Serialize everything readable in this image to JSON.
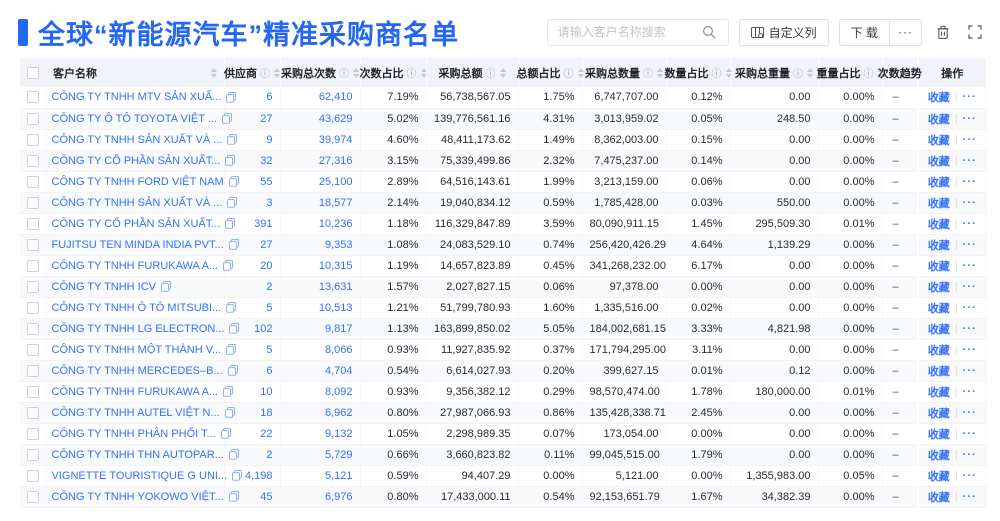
{
  "colors": {
    "accent": "#2468F2",
    "link": "#3370FF",
    "header_bg": "#F1F3F8"
  },
  "header": {
    "title": "全球“新能源汽车”精准采购商名单",
    "search_placeholder": "请输入客户名称搜索",
    "customize_label": "自定义列",
    "download_label": "下 载",
    "more_label": "···"
  },
  "icons": {
    "info": "ⓘ",
    "trash": "trash-icon",
    "fullscreen": "fullscreen-icon",
    "search": "search-icon",
    "copy": "copy-icon"
  },
  "table": {
    "actions": {
      "favorite": "收藏",
      "more": "···"
    },
    "columns": [
      {
        "key": "name",
        "label": "客户名称",
        "info": false,
        "sort": true
      },
      {
        "key": "supplier",
        "label": "供应商",
        "info": true,
        "sort": true
      },
      {
        "key": "total_count",
        "label": "采购总次数",
        "info": true,
        "sort": true
      },
      {
        "key": "count_pct",
        "label": "次数占比",
        "info": true,
        "sort": true
      },
      {
        "key": "total_amount",
        "label": "采购总额",
        "info": true,
        "sort": true
      },
      {
        "key": "amount_pct",
        "label": "总额占比",
        "info": true,
        "sort": true
      },
      {
        "key": "total_qty",
        "label": "采购总数量",
        "info": true,
        "sort": true
      },
      {
        "key": "qty_pct",
        "label": "数量占比",
        "info": true,
        "sort": true
      },
      {
        "key": "total_weight",
        "label": "采购总重量",
        "info": true,
        "sort": true
      },
      {
        "key": "weight_pct",
        "label": "重量占比",
        "info": true,
        "sort": true
      },
      {
        "key": "trend",
        "label": "次数趋势",
        "info": false,
        "sort": false
      },
      {
        "key": "ops",
        "label": "操作",
        "info": false,
        "sort": false
      }
    ],
    "value_keys": [
      "supplier",
      "total_count",
      "count_pct",
      "total_amount",
      "amount_pct",
      "total_qty",
      "qty_pct",
      "total_weight",
      "weight_pct"
    ],
    "blue_keys": [
      "supplier",
      "total_count"
    ],
    "rows": [
      {
        "name": "CÔNG TY TNHH MTV SẢN XUẤ...",
        "supplier": "6",
        "total_count": "62,410",
        "count_pct": "7.19%",
        "total_amount": "56,738,567.05",
        "amount_pct": "1.75%",
        "total_qty": "6,747,707.00",
        "qty_pct": "0.12%",
        "total_weight": "0.00",
        "weight_pct": "0.00%",
        "trend": "–"
      },
      {
        "name": "CÔNG TY Ô TÔ TOYOTA VIỆT ...",
        "supplier": "27",
        "total_count": "43,629",
        "count_pct": "5.02%",
        "total_amount": "139,776,561.16",
        "amount_pct": "4.31%",
        "total_qty": "3,013,959.02",
        "qty_pct": "0.05%",
        "total_weight": "248.50",
        "weight_pct": "0.00%",
        "trend": "–"
      },
      {
        "name": "CÔNG TY TNHH SẢN XUẤT VÀ ...",
        "supplier": "9",
        "total_count": "39,974",
        "count_pct": "4.60%",
        "total_amount": "48,411,173.62",
        "amount_pct": "1.49%",
        "total_qty": "8,362,003.00",
        "qty_pct": "0.15%",
        "total_weight": "0.00",
        "weight_pct": "0.00%",
        "trend": "–"
      },
      {
        "name": "CÔNG TY CỔ PHẦN SẢN XUẤT...",
        "supplier": "32",
        "total_count": "27,316",
        "count_pct": "3.15%",
        "total_amount": "75,339,499.86",
        "amount_pct": "2.32%",
        "total_qty": "7,475,237.00",
        "qty_pct": "0.14%",
        "total_weight": "0.00",
        "weight_pct": "0.00%",
        "trend": "–"
      },
      {
        "name": "CÔNG TY TNHH FORD VIỆT NAM",
        "supplier": "55",
        "total_count": "25,100",
        "count_pct": "2.89%",
        "total_amount": "64,516,143.61",
        "amount_pct": "1.99%",
        "total_qty": "3,213,159.00",
        "qty_pct": "0.06%",
        "total_weight": "0.00",
        "weight_pct": "0.00%",
        "trend": "–"
      },
      {
        "name": "CÔNG TY TNHH SẢN XUẤT VÀ ...",
        "supplier": "3",
        "total_count": "18,577",
        "count_pct": "2.14%",
        "total_amount": "19,040,834.12",
        "amount_pct": "0.59%",
        "total_qty": "1,785,428.00",
        "qty_pct": "0.03%",
        "total_weight": "550.00",
        "weight_pct": "0.00%",
        "trend": "–"
      },
      {
        "name": "CÔNG TY CỔ PHẦN SẢN XUẤT...",
        "supplier": "391",
        "total_count": "10,236",
        "count_pct": "1.18%",
        "total_amount": "116,329,847.89",
        "amount_pct": "3.59%",
        "total_qty": "80,090,911.15",
        "qty_pct": "1.45%",
        "total_weight": "295,509.30",
        "weight_pct": "0.01%",
        "trend": "–"
      },
      {
        "name": "FUJITSU TEN MINDA INDIA PVT...",
        "supplier": "27",
        "total_count": "9,353",
        "count_pct": "1.08%",
        "total_amount": "24,083,529.10",
        "amount_pct": "0.74%",
        "total_qty": "256,420,426.29",
        "qty_pct": "4.64%",
        "total_weight": "1,139.29",
        "weight_pct": "0.00%",
        "trend": "–"
      },
      {
        "name": "CÔNG TY TNHH FURUKAWA A...",
        "supplier": "20",
        "total_count": "10,315",
        "count_pct": "1.19%",
        "total_amount": "14,657,823.89",
        "amount_pct": "0.45%",
        "total_qty": "341,268,232.00",
        "qty_pct": "6.17%",
        "total_weight": "0.00",
        "weight_pct": "0.00%",
        "trend": "–"
      },
      {
        "name": "CÔNG TY TNHH ICV",
        "supplier": "2",
        "total_count": "13,631",
        "count_pct": "1.57%",
        "total_amount": "2,027,827.15",
        "amount_pct": "0.06%",
        "total_qty": "97,378.00",
        "qty_pct": "0.00%",
        "total_weight": "0.00",
        "weight_pct": "0.00%",
        "trend": "–"
      },
      {
        "name": "CÔNG TY TNHH Ô TÔ MITSUBI...",
        "supplier": "5",
        "total_count": "10,513",
        "count_pct": "1.21%",
        "total_amount": "51,799,780.93",
        "amount_pct": "1.60%",
        "total_qty": "1,335,516.00",
        "qty_pct": "0.02%",
        "total_weight": "0.00",
        "weight_pct": "0.00%",
        "trend": "–"
      },
      {
        "name": "CÔNG TY TNHH LG ELECTRON...",
        "supplier": "102",
        "total_count": "9,817",
        "count_pct": "1.13%",
        "total_amount": "163,899,850.02",
        "amount_pct": "5.05%",
        "total_qty": "184,002,681.15",
        "qty_pct": "3.33%",
        "total_weight": "4,821.98",
        "weight_pct": "0.00%",
        "trend": "–"
      },
      {
        "name": "CÔNG TY TNHH MỘT THÀNH V...",
        "supplier": "5",
        "total_count": "8,066",
        "count_pct": "0.93%",
        "total_amount": "11,927,835.92",
        "amount_pct": "0.37%",
        "total_qty": "171,794,295.00",
        "qty_pct": "3.11%",
        "total_weight": "0.00",
        "weight_pct": "0.00%",
        "trend": "–"
      },
      {
        "name": "CÔNG TY TNHH MERCEDES–B...",
        "supplier": "6",
        "total_count": "4,704",
        "count_pct": "0.54%",
        "total_amount": "6,614,027.93",
        "amount_pct": "0.20%",
        "total_qty": "399,627.15",
        "qty_pct": "0.01%",
        "total_weight": "0.12",
        "weight_pct": "0.00%",
        "trend": "–"
      },
      {
        "name": "CÔNG TY TNHH FURUKAWA A...",
        "supplier": "10",
        "total_count": "8,092",
        "count_pct": "0.93%",
        "total_amount": "9,356,382.12",
        "amount_pct": "0.29%",
        "total_qty": "98,570,474.00",
        "qty_pct": "1.78%",
        "total_weight": "180,000.00",
        "weight_pct": "0.01%",
        "trend": "–"
      },
      {
        "name": "CÔNG TY TNHH AUTEL VIỆT N...",
        "supplier": "18",
        "total_count": "6,962",
        "count_pct": "0.80%",
        "total_amount": "27,987,066.93",
        "amount_pct": "0.86%",
        "total_qty": "135,428,338.71",
        "qty_pct": "2.45%",
        "total_weight": "0.00",
        "weight_pct": "0.00%",
        "trend": "–"
      },
      {
        "name": "CÔNG TY TNHH PHÂN PHỐI T...",
        "supplier": "22",
        "total_count": "9,132",
        "count_pct": "1.05%",
        "total_amount": "2,298,989.35",
        "amount_pct": "0.07%",
        "total_qty": "173,054.00",
        "qty_pct": "0.00%",
        "total_weight": "0.00",
        "weight_pct": "0.00%",
        "trend": "–"
      },
      {
        "name": "CÔNG TY TNHH THN AUTOPAR...",
        "supplier": "2",
        "total_count": "5,729",
        "count_pct": "0.66%",
        "total_amount": "3,660,823.82",
        "amount_pct": "0.11%",
        "total_qty": "99,045,515.00",
        "qty_pct": "1.79%",
        "total_weight": "0.00",
        "weight_pct": "0.00%",
        "trend": "–"
      },
      {
        "name": "VIGNETTE TOURISTIQUE G UNI...",
        "supplier": "4,198",
        "total_count": "5,121",
        "count_pct": "0.59%",
        "total_amount": "94,407.29",
        "amount_pct": "0.00%",
        "total_qty": "5,121.00",
        "qty_pct": "0.00%",
        "total_weight": "1,355,983.00",
        "weight_pct": "0.05%",
        "trend": "–"
      },
      {
        "name": "CÔNG TY TNHH YOKOWO VIỆT...",
        "supplier": "45",
        "total_count": "6,976",
        "count_pct": "0.80%",
        "total_amount": "17,433,000.11",
        "amount_pct": "0.54%",
        "total_qty": "92,153,651.79",
        "qty_pct": "1.67%",
        "total_weight": "34,382.39",
        "weight_pct": "0.00%",
        "trend": "–"
      }
    ]
  }
}
